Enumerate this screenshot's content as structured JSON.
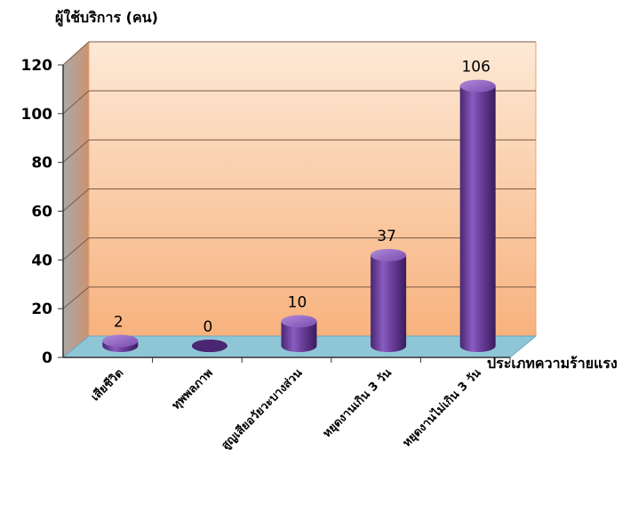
{
  "chart_data": {
    "type": "bar",
    "ylabel": "ผู้ใช้บริการ (คน)",
    "xlabel": "ประเภทความร้ายแรง",
    "categories": [
      "เสียชีวิต",
      "ทุพพลภาพ",
      "สูญเสียอวัยวะบางส่วน",
      "หยุดงานเกิน  3  วัน",
      "หยุดงานไม่เกิน  3  วัน"
    ],
    "values": [
      2,
      0,
      10,
      37,
      106
    ],
    "ylim": [
      0,
      120
    ],
    "yticks": [
      0,
      20,
      40,
      60,
      80,
      100,
      120
    ],
    "grid": true,
    "legend": "none",
    "colors": {
      "bar": "#6a3d9a",
      "bar_light": "#9a70c8",
      "bar_dark": "#3e1f63",
      "wall_top": "#fde9d6",
      "wall_bottom": "#f7b27e",
      "floor": "#8fc6d6",
      "side_wall": "#b07c5c"
    }
  }
}
